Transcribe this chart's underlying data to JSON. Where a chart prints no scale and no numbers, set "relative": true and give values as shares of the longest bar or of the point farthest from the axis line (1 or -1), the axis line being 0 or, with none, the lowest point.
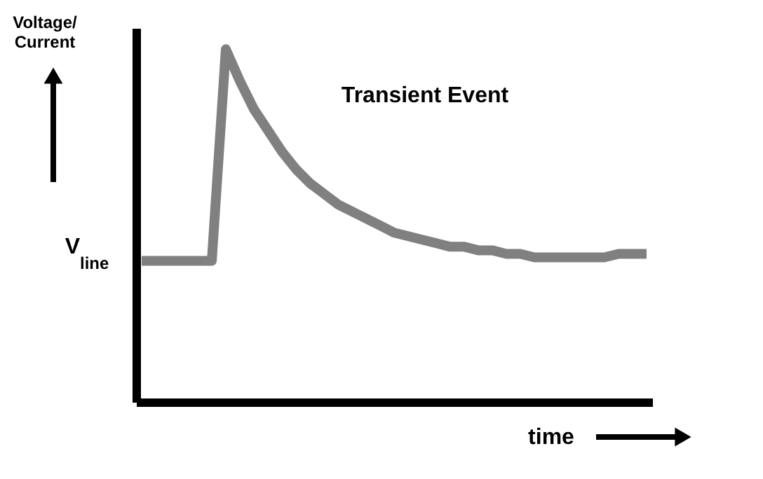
{
  "chart_data": {
    "type": "line",
    "title": "Transient Event",
    "xlabel": "time",
    "ylabel": "Voltage/ Current",
    "relative": true,
    "color": "#808080",
    "line_style": "solid",
    "marker": "none",
    "categories": [
      null,
      null,
      null,
      null,
      null,
      null,
      null,
      null,
      null,
      null,
      null,
      null,
      null,
      null,
      null,
      null,
      null,
      null,
      null,
      null,
      null,
      null,
      null,
      null,
      null,
      null,
      null,
      null,
      null,
      null,
      null,
      null,
      null,
      null,
      null,
      null,
      null
    ],
    "values": [
      0.4,
      0.4,
      0.4,
      0.4,
      0.4,
      0.4,
      1.0,
      0.91,
      0.83,
      0.77,
      0.71,
      0.66,
      0.62,
      0.59,
      0.56,
      0.54,
      0.52,
      0.5,
      0.48,
      0.47,
      0.46,
      0.45,
      0.44,
      0.44,
      0.43,
      0.43,
      0.42,
      0.42,
      0.41,
      0.41,
      0.41,
      0.41,
      0.41,
      0.41,
      0.42,
      0.42,
      0.42
    ],
    "annotations": [
      "V$_{line}$"
    ]
  }
}
